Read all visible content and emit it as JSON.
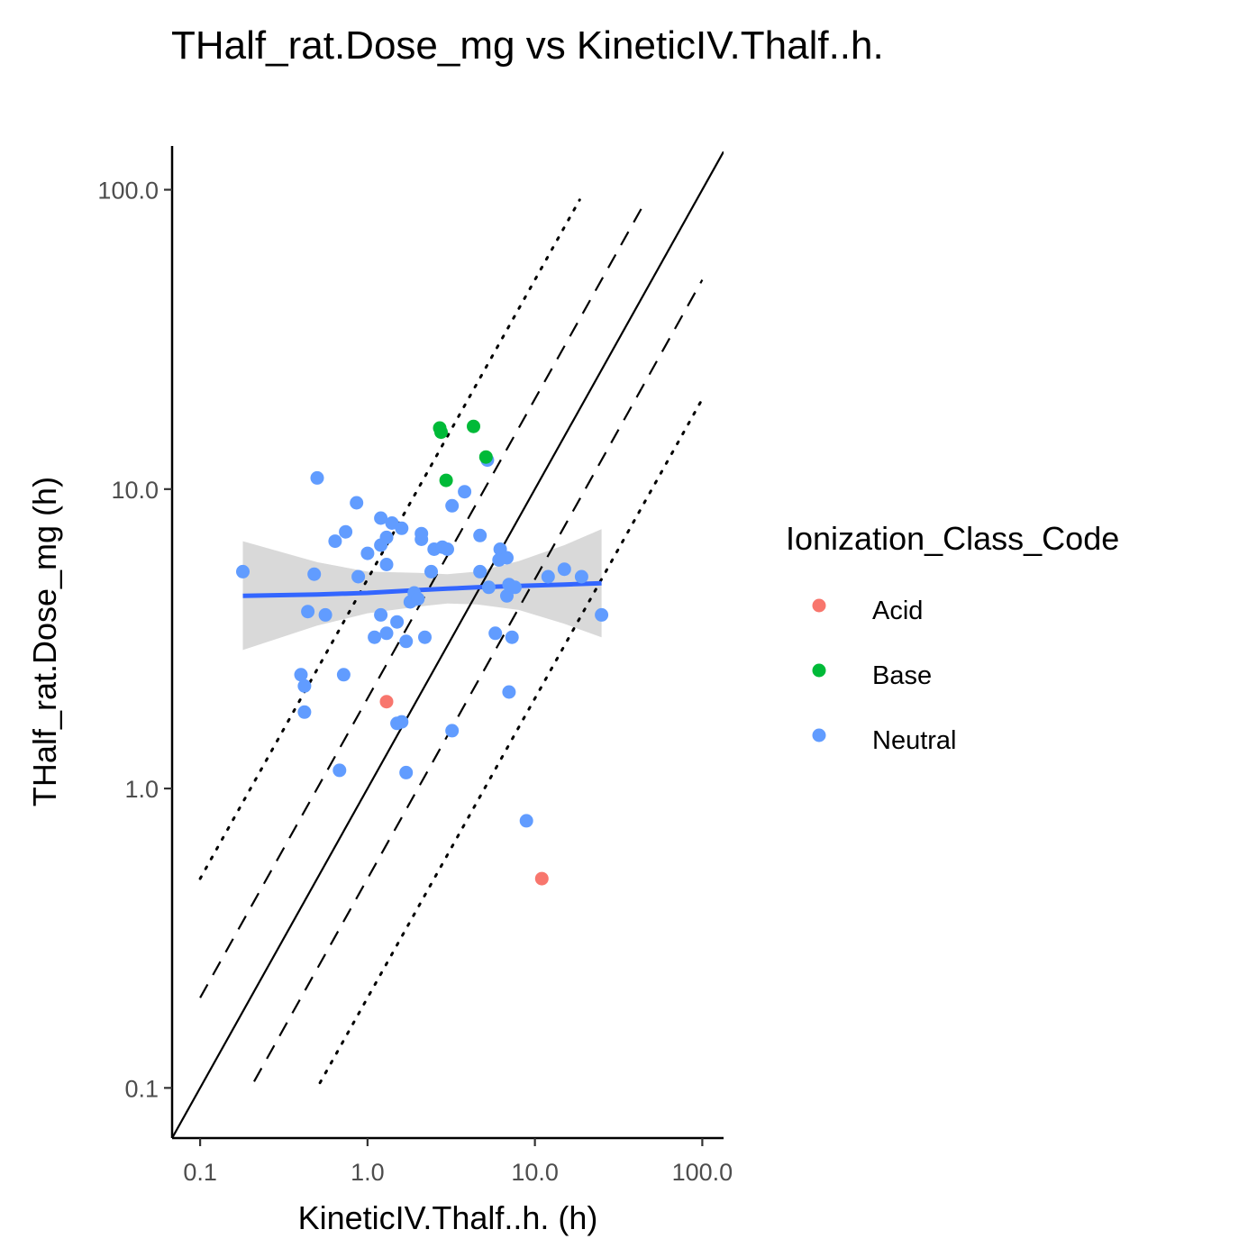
{
  "chart_data": {
    "type": "scatter",
    "title": "THalf_rat.Dose_mg vs KineticIV.Thalf..h.",
    "xlabel": "KineticIV.Thalf..h. (h)",
    "ylabel": "THalf_rat.Dose_mg (h)",
    "x_scale": "log10",
    "y_scale": "log10",
    "xlim": [
      0.068,
      134
    ],
    "ylim": [
      0.068,
      140
    ],
    "x_ticks": [
      "0.1",
      "1.0",
      "10.0",
      "100.0"
    ],
    "y_ticks": [
      "0.1",
      "1.0",
      "10.0",
      "100.0"
    ],
    "grid": false,
    "legend": {
      "title": "Ionization_Class_Code",
      "position": "right",
      "entries": [
        {
          "label": "Acid",
          "color": "#F8766D"
        },
        {
          "label": "Base",
          "color": "#00BA38"
        },
        {
          "label": "Neutral",
          "color": "#619CFF"
        }
      ]
    },
    "reference_lines": [
      {
        "name": "identity",
        "style": "solid",
        "x": [
          0.068,
          134
        ],
        "y": [
          0.068,
          134
        ]
      },
      {
        "name": "2-fold upper",
        "style": "dashed",
        "x": [
          0.1,
          45
        ],
        "y": [
          0.2,
          90
        ]
      },
      {
        "name": "2-fold lower",
        "style": "dashed",
        "x": [
          0.21,
          100
        ],
        "y": [
          0.105,
          50
        ]
      },
      {
        "name": "5-fold upper",
        "style": "dotted",
        "x": [
          0.1,
          18.5
        ],
        "y": [
          0.5,
          92.5
        ]
      },
      {
        "name": "5-fold lower",
        "style": "dotted",
        "x": [
          0.52,
          100
        ],
        "y": [
          0.104,
          20
        ]
      }
    ],
    "smooth": {
      "method": "lm",
      "color": "#3366FF",
      "ribbon_color": "#d9d9d9",
      "x": [
        0.18,
        0.5,
        1.0,
        2.0,
        3.0,
        4.5,
        8.0,
        15.0,
        25.0
      ],
      "y": [
        4.4,
        4.45,
        4.5,
        4.6,
        4.65,
        4.7,
        4.75,
        4.8,
        4.85
      ],
      "ymin": [
        2.9,
        3.5,
        3.85,
        4.05,
        4.15,
        4.12,
        3.95,
        3.55,
        3.2
      ],
      "ymax": [
        6.7,
        5.7,
        5.3,
        5.25,
        5.2,
        5.3,
        5.75,
        6.5,
        7.35
      ]
    },
    "series": [
      {
        "name": "Acid",
        "color": "#F8766D",
        "points": [
          [
            1.3,
            1.95
          ],
          [
            11.0,
            0.5
          ]
        ]
      },
      {
        "name": "Base",
        "color": "#00BA38",
        "points": [
          [
            2.7,
            16.0
          ],
          [
            2.75,
            15.5
          ],
          [
            4.3,
            16.2
          ],
          [
            5.1,
            12.8
          ],
          [
            2.95,
            10.7
          ]
        ]
      },
      {
        "name": "Neutral",
        "color": "#619CFF",
        "points": [
          [
            0.18,
            5.3
          ],
          [
            0.5,
            10.9
          ],
          [
            0.48,
            5.2
          ],
          [
            0.44,
            3.9
          ],
          [
            0.56,
            3.8
          ],
          [
            0.4,
            2.4
          ],
          [
            0.42,
            2.2
          ],
          [
            0.42,
            1.8
          ],
          [
            0.64,
            6.7
          ],
          [
            0.74,
            7.2
          ],
          [
            0.68,
            1.15
          ],
          [
            0.72,
            2.4
          ],
          [
            0.86,
            9.0
          ],
          [
            0.88,
            5.1
          ],
          [
            1.0,
            6.1
          ],
          [
            1.1,
            3.2
          ],
          [
            1.2,
            3.8
          ],
          [
            1.2,
            8.0
          ],
          [
            1.2,
            6.5
          ],
          [
            1.3,
            6.9
          ],
          [
            1.3,
            5.6
          ],
          [
            1.3,
            3.3
          ],
          [
            1.4,
            7.7
          ],
          [
            1.5,
            3.6
          ],
          [
            1.5,
            1.65
          ],
          [
            1.6,
            7.4
          ],
          [
            1.6,
            1.67
          ],
          [
            1.7,
            1.13
          ],
          [
            1.7,
            3.1
          ],
          [
            1.8,
            4.2
          ],
          [
            1.9,
            4.5
          ],
          [
            2.0,
            4.3
          ],
          [
            2.1,
            7.1
          ],
          [
            2.1,
            6.8
          ],
          [
            2.2,
            3.2
          ],
          [
            2.4,
            5.3
          ],
          [
            2.5,
            6.3
          ],
          [
            2.8,
            6.4
          ],
          [
            3.0,
            6.3
          ],
          [
            3.2,
            8.8
          ],
          [
            3.2,
            1.56
          ],
          [
            3.8,
            9.8
          ],
          [
            4.7,
            7.0
          ],
          [
            4.7,
            5.3
          ],
          [
            5.2,
            12.5
          ],
          [
            5.3,
            4.7
          ],
          [
            5.8,
            3.3
          ],
          [
            6.1,
            5.8
          ],
          [
            6.2,
            6.3
          ],
          [
            6.8,
            5.9
          ],
          [
            6.8,
            4.4
          ],
          [
            7.0,
            2.1
          ],
          [
            7.0,
            4.8
          ],
          [
            7.3,
            3.2
          ],
          [
            7.6,
            4.7
          ],
          [
            8.9,
            0.78
          ],
          [
            12.0,
            5.1
          ],
          [
            15.0,
            5.4
          ],
          [
            19.0,
            5.1
          ],
          [
            25.0,
            3.8
          ]
        ]
      }
    ]
  }
}
